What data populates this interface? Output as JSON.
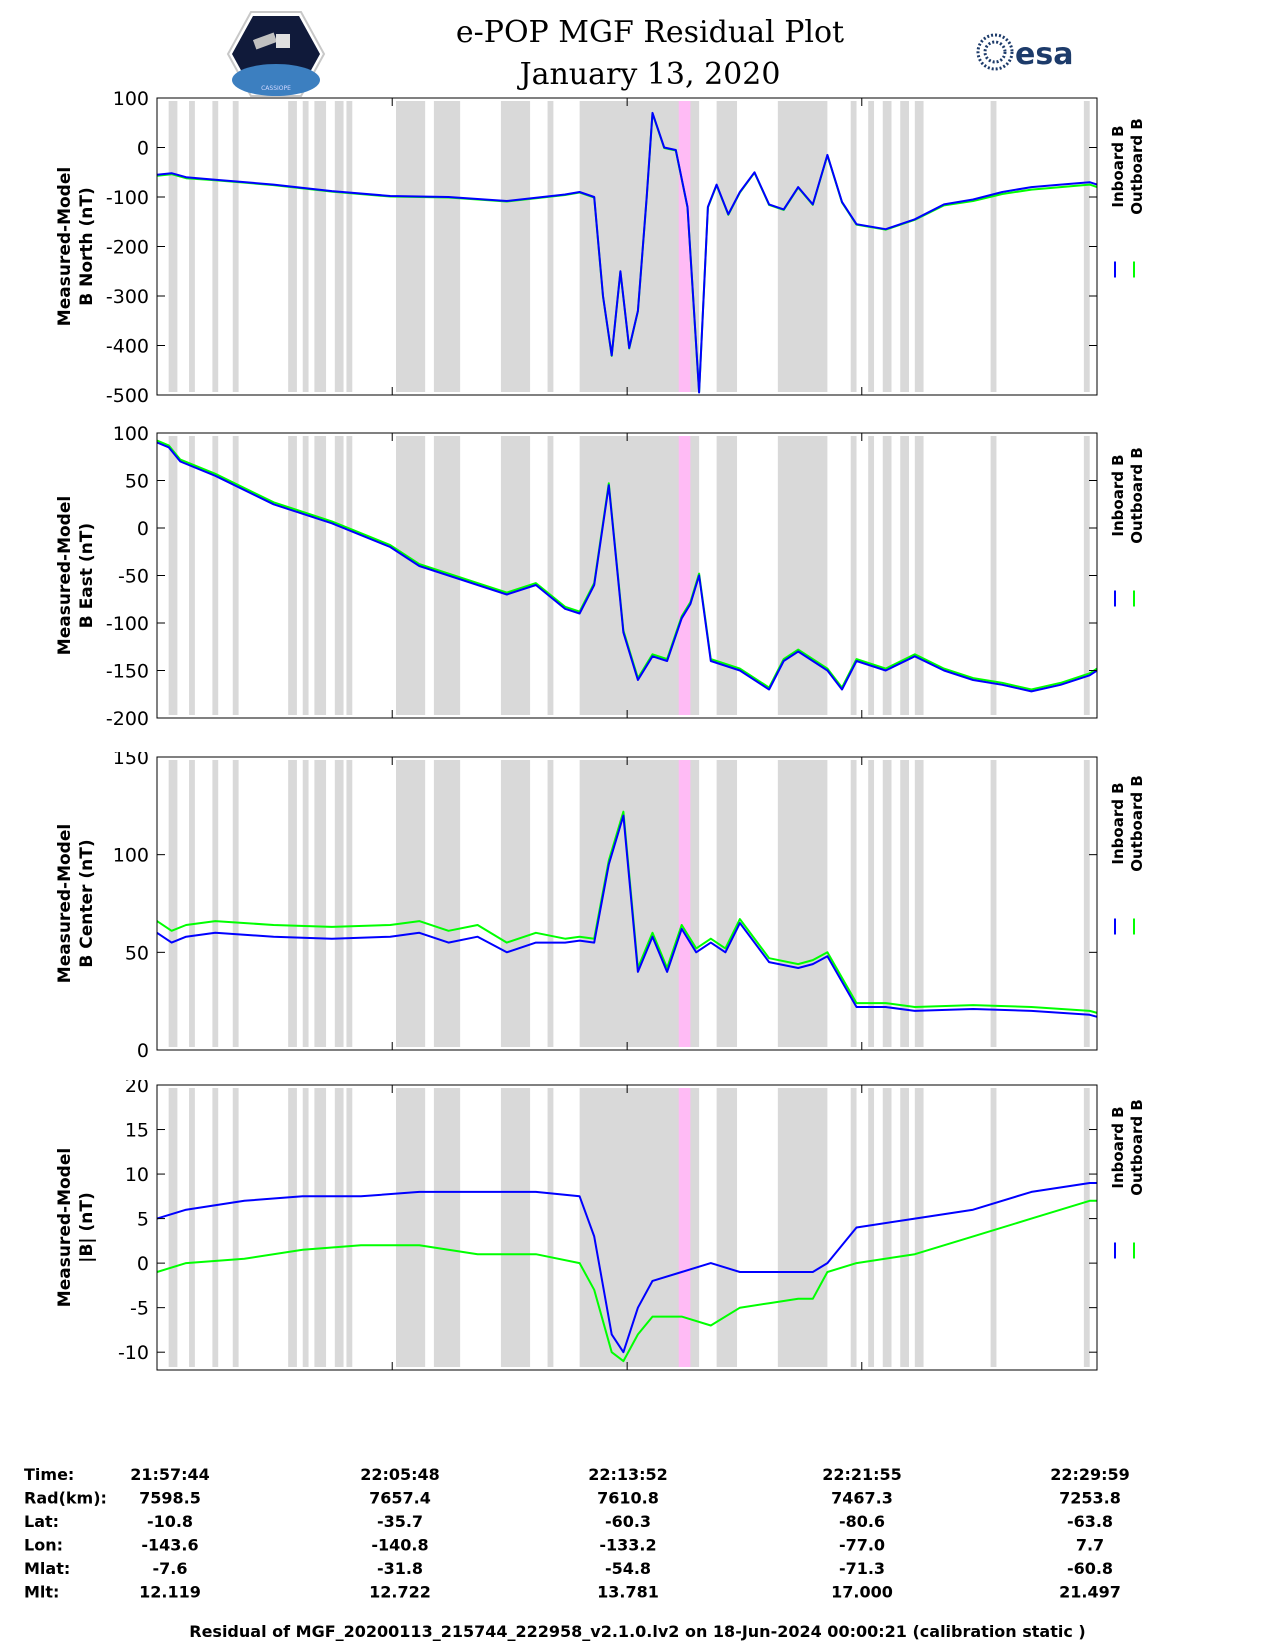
{
  "title": "e-POP MGF Residual Plot",
  "subtitle": "January 13, 2020",
  "logo_left": {
    "name": "cassiope-mission-logo",
    "text": "CASSIOPE"
  },
  "logo_right": {
    "name": "esa-logo",
    "text": "esa"
  },
  "legend": {
    "inboard": "Inboard B",
    "outboard": "Outboard B"
  },
  "colors": {
    "inboard": "#0000ff",
    "outboard": "#00ff00",
    "shade": "#d9d9d9",
    "highlight": "#ffbbf5"
  },
  "caption": "Residual of MGF_20200113_215744_222958_v2.1.0.lv2 on 18-Jun-2024 00:00:21 (calibration static )",
  "footer": {
    "labels": [
      "Time:",
      "Rad(km):",
      "Lat:",
      "Lon:",
      "Mlat:",
      "Mlt:"
    ],
    "columns": [
      [
        "21:57:44",
        "7598.5",
        "-10.8",
        "-143.6",
        "-7.6",
        "12.119"
      ],
      [
        "22:05:48",
        "7657.4",
        "-35.7",
        "-140.8",
        "-31.8",
        "12.722"
      ],
      [
        "22:13:52",
        "7610.8",
        "-60.3",
        "-133.2",
        "-54.8",
        "13.781"
      ],
      [
        "22:21:55",
        "7467.3",
        "-80.6",
        "-77.0",
        "-71.3",
        "17.000"
      ],
      [
        "22:29:59",
        "7253.8",
        "-63.8",
        "7.7",
        "-60.8",
        "21.497"
      ]
    ]
  },
  "chart_data": [
    {
      "type": "line",
      "ylabel_line1": "Measured-Model",
      "ylabel_line2": "B North (nT)",
      "ylim": [
        -500,
        100
      ],
      "yticks": [
        "100",
        "0",
        "-100",
        "-200",
        "-300",
        "-400",
        "-500"
      ],
      "xlim_min": [
        0,
        32.25
      ],
      "x": [
        0,
        0.5,
        1,
        2,
        4,
        6,
        8,
        10,
        12,
        14,
        14.5,
        15,
        15.3,
        15.6,
        15.9,
        16.2,
        16.5,
        16.8,
        17.0,
        17.4,
        17.8,
        18.2,
        18.6,
        18.9,
        19.2,
        19.6,
        20.0,
        20.5,
        21,
        21.5,
        22,
        22.5,
        23,
        23.5,
        24,
        25,
        26,
        27,
        28,
        29,
        30,
        31,
        32,
        32.25
      ],
      "series": [
        {
          "name": "Inboard B",
          "values": [
            -55,
            -52,
            -60,
            -65,
            -75,
            -88,
            -98,
            -100,
            -108,
            -95,
            -90,
            -100,
            -300,
            -420,
            -250,
            -405,
            -330,
            -100,
            70,
            0,
            -5,
            -120,
            -495,
            -120,
            -75,
            -135,
            -90,
            -50,
            -115,
            -125,
            -80,
            -115,
            -15,
            -110,
            -155,
            -165,
            -145,
            -115,
            -105,
            -90,
            -80,
            -75,
            -70,
            -75
          ]
        },
        {
          "name": "Outboard B",
          "values": [
            -57,
            -54,
            -62,
            -66,
            -76,
            -89,
            -99,
            -101,
            -109,
            -96,
            -91,
            -101,
            -301,
            -421,
            -251,
            -406,
            -331,
            -101,
            69,
            -1,
            -6,
            -121,
            -494,
            -121,
            -76,
            -136,
            -91,
            -51,
            -116,
            -126,
            -81,
            -116,
            -16,
            -111,
            -156,
            -166,
            -146,
            -117,
            -108,
            -94,
            -85,
            -80,
            -75,
            -80
          ]
        }
      ]
    },
    {
      "type": "line",
      "ylabel_line1": "Measured-Model",
      "ylabel_line2": "B East (nT)",
      "ylim": [
        -200,
        100
      ],
      "yticks": [
        "100",
        "50",
        "0",
        "-50",
        "-100",
        "-150",
        "-200"
      ],
      "xlim_min": [
        0,
        32.25
      ],
      "x": [
        0,
        0.4,
        0.8,
        2,
        4,
        6,
        8,
        9,
        10,
        11,
        12,
        13,
        14,
        14.5,
        15,
        15.5,
        16,
        16.5,
        17,
        17.5,
        18,
        18.3,
        18.6,
        19,
        20,
        21,
        21.5,
        22,
        22.5,
        23,
        23.5,
        24,
        25,
        26,
        27,
        28,
        29,
        30,
        31,
        32,
        32.25
      ],
      "series": [
        {
          "name": "Inboard B",
          "values": [
            90,
            85,
            70,
            55,
            25,
            5,
            -20,
            -40,
            -50,
            -60,
            -70,
            -60,
            -85,
            -90,
            -60,
            45,
            -110,
            -160,
            -135,
            -140,
            -95,
            -80,
            -50,
            -140,
            -150,
            -170,
            -140,
            -130,
            -140,
            -150,
            -170,
            -140,
            -150,
            -135,
            -150,
            -160,
            -165,
            -172,
            -165,
            -155,
            -150
          ]
        },
        {
          "name": "Outboard B",
          "values": [
            92,
            87,
            72,
            57,
            27,
            7,
            -18,
            -38,
            -48,
            -58,
            -68,
            -58,
            -83,
            -88,
            -58,
            47,
            -108,
            -158,
            -133,
            -138,
            -93,
            -78,
            -48,
            -138,
            -148,
            -168,
            -138,
            -128,
            -138,
            -148,
            -168,
            -138,
            -148,
            -133,
            -148,
            -158,
            -163,
            -170,
            -163,
            -153,
            -148
          ]
        }
      ]
    },
    {
      "type": "line",
      "ylabel_line1": "Measured-Model",
      "ylabel_line2": "B Center (nT)",
      "ylim": [
        0,
        150
      ],
      "yticks": [
        "150",
        "100",
        "50",
        "0"
      ],
      "xlim_min": [
        0,
        32.25
      ],
      "x": [
        0,
        0.5,
        1,
        2,
        4,
        6,
        8,
        9,
        10,
        11,
        12,
        13,
        14,
        14.5,
        15,
        15.5,
        16,
        16.5,
        17,
        17.5,
        18,
        18.5,
        19,
        19.5,
        20,
        21,
        22,
        22.5,
        23,
        24,
        25,
        26,
        28,
        30,
        32,
        32.25
      ],
      "series": [
        {
          "name": "Inboard B",
          "values": [
            60,
            55,
            58,
            60,
            58,
            57,
            58,
            60,
            55,
            58,
            50,
            55,
            55,
            56,
            55,
            95,
            120,
            40,
            58,
            40,
            62,
            50,
            55,
            50,
            65,
            45,
            42,
            44,
            48,
            22,
            22,
            20,
            21,
            20,
            18,
            17
          ]
        },
        {
          "name": "Outboard B",
          "values": [
            66,
            61,
            64,
            66,
            64,
            63,
            64,
            66,
            61,
            64,
            55,
            60,
            57,
            58,
            57,
            97,
            122,
            42,
            60,
            42,
            64,
            52,
            57,
            52,
            67,
            47,
            44,
            46,
            50,
            24,
            24,
            22,
            23,
            22,
            20,
            19
          ]
        }
      ]
    },
    {
      "type": "line",
      "ylabel_line1": "Measured-Model",
      "ylabel_line2": "|B| (nT)",
      "ylim": [
        -12,
        20
      ],
      "yticks": [
        "20",
        "15",
        "10",
        "5",
        "0",
        "-5",
        "-10"
      ],
      "xlim_min": [
        0,
        32.25
      ],
      "x": [
        0,
        1,
        3,
        5,
        7,
        9,
        11,
        13,
        14.5,
        15,
        15.6,
        16,
        16.5,
        17,
        18,
        19,
        20,
        21,
        22,
        22.5,
        23,
        24,
        26,
        28,
        30,
        32,
        32.25
      ],
      "series": [
        {
          "name": "Inboard B",
          "values": [
            5,
            6,
            7,
            7.5,
            7.5,
            8,
            8,
            8,
            7.5,
            3,
            -8,
            -10,
            -5,
            -2,
            -1,
            0,
            -1,
            -1,
            -1,
            -1,
            0,
            4,
            5,
            6,
            8,
            9,
            9
          ]
        },
        {
          "name": "Outboard B",
          "values": [
            -1,
            0,
            0.5,
            1.5,
            2,
            2,
            1,
            1,
            0,
            -3,
            -10,
            -11,
            -8,
            -6,
            -6,
            -7,
            -5,
            -4.5,
            -4,
            -4,
            -1,
            0,
            1,
            3,
            5,
            7,
            7
          ]
        }
      ]
    }
  ],
  "shaded_intervals_min": [
    [
      0.4,
      0.7
    ],
    [
      1.1,
      1.3
    ],
    [
      1.9,
      2.1
    ],
    [
      2.6,
      2.8
    ],
    [
      4.5,
      4.8
    ],
    [
      5.0,
      5.2
    ],
    [
      5.4,
      5.8
    ],
    [
      6.1,
      6.4
    ],
    [
      6.5,
      6.7
    ],
    [
      8.2,
      9.2
    ],
    [
      9.5,
      10.4
    ],
    [
      11.8,
      12.8
    ],
    [
      13.4,
      13.6
    ],
    [
      14.5,
      18.6
    ],
    [
      19.2,
      19.9
    ],
    [
      21.3,
      23.0
    ],
    [
      23.8,
      24.0
    ],
    [
      24.4,
      24.6
    ],
    [
      24.9,
      25.2
    ],
    [
      25.5,
      25.8
    ],
    [
      26.0,
      26.3
    ],
    [
      28.6,
      28.8
    ],
    [
      31.8,
      32.0
    ]
  ],
  "highlight_interval_min": [
    17.9,
    18.3
  ]
}
